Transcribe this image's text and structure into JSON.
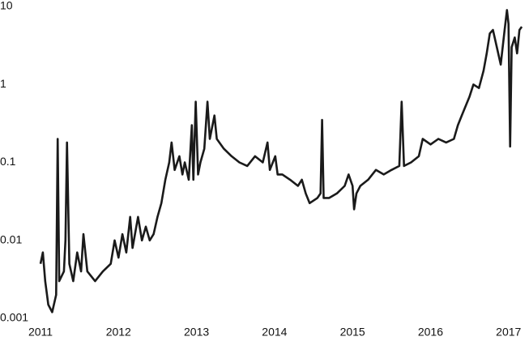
{
  "chart_data": {
    "type": "line",
    "log_y": true,
    "grid": false,
    "xlim": [
      2011,
      2017.2
    ],
    "xticks": [
      2011,
      2012,
      2013,
      2014,
      2015,
      2016,
      2017
    ],
    "ylim": [
      0.001,
      10
    ],
    "yticks": [
      0.001,
      0.01,
      0.1,
      1,
      10
    ],
    "series": [
      {
        "color": "#1a1a1a",
        "x": [
          2011.0,
          2011.03,
          2011.06,
          2011.1,
          2011.15,
          2011.2,
          2011.22,
          2011.24,
          2011.3,
          2011.32,
          2011.34,
          2011.37,
          2011.42,
          2011.47,
          2011.52,
          2011.55,
          2011.6,
          2011.7,
          2011.8,
          2011.9,
          2011.95,
          2012.0,
          2012.05,
          2012.1,
          2012.15,
          2012.18,
          2012.25,
          2012.3,
          2012.35,
          2012.4,
          2012.45,
          2012.5,
          2012.55,
          2012.6,
          2012.65,
          2012.68,
          2012.72,
          2012.78,
          2012.82,
          2012.85,
          2012.9,
          2012.94,
          2012.96,
          2012.99,
          2013.02,
          2013.05,
          2013.1,
          2013.14,
          2013.17,
          2013.23,
          2013.26,
          2013.35,
          2013.45,
          2013.55,
          2013.65,
          2013.75,
          2013.85,
          2013.91,
          2013.94,
          2014.01,
          2014.04,
          2014.1,
          2014.2,
          2014.3,
          2014.35,
          2014.4,
          2014.45,
          2014.55,
          2014.59,
          2014.61,
          2014.63,
          2014.7,
          2014.8,
          2014.9,
          2014.95,
          2015.0,
          2015.02,
          2015.05,
          2015.1,
          2015.2,
          2015.3,
          2015.4,
          2015.5,
          2015.6,
          2015.63,
          2015.66,
          2015.75,
          2015.85,
          2015.9,
          2016.0,
          2016.1,
          2016.2,
          2016.3,
          2016.35,
          2016.4,
          2016.5,
          2016.55,
          2016.62,
          2016.68,
          2016.72,
          2016.76,
          2016.8,
          2016.85,
          2016.9,
          2016.95,
          2016.98,
          2017.0,
          2017.02,
          2017.04,
          2017.08,
          2017.11,
          2017.14,
          2017.17
        ],
        "values": [
          0.005,
          0.007,
          0.003,
          0.0015,
          0.0012,
          0.002,
          0.2,
          0.003,
          0.004,
          0.01,
          0.18,
          0.005,
          0.003,
          0.007,
          0.004,
          0.012,
          0.004,
          0.003,
          0.004,
          0.005,
          0.01,
          0.006,
          0.012,
          0.007,
          0.02,
          0.008,
          0.02,
          0.01,
          0.015,
          0.01,
          0.012,
          0.02,
          0.03,
          0.06,
          0.1,
          0.18,
          0.08,
          0.12,
          0.07,
          0.1,
          0.06,
          0.3,
          0.06,
          0.6,
          0.07,
          0.1,
          0.15,
          0.6,
          0.2,
          0.4,
          0.2,
          0.15,
          0.12,
          0.1,
          0.09,
          0.12,
          0.1,
          0.18,
          0.08,
          0.12,
          0.07,
          0.07,
          0.06,
          0.05,
          0.06,
          0.04,
          0.03,
          0.035,
          0.04,
          0.35,
          0.035,
          0.035,
          0.04,
          0.05,
          0.07,
          0.05,
          0.025,
          0.04,
          0.05,
          0.06,
          0.08,
          0.07,
          0.08,
          0.09,
          0.6,
          0.09,
          0.1,
          0.12,
          0.2,
          0.17,
          0.2,
          0.18,
          0.2,
          0.3,
          0.4,
          0.7,
          1.0,
          0.9,
          1.5,
          2.5,
          4.5,
          5,
          3,
          1.8,
          5,
          9,
          6,
          0.16,
          3,
          4,
          2.5,
          5,
          5.5
        ]
      }
    ]
  }
}
